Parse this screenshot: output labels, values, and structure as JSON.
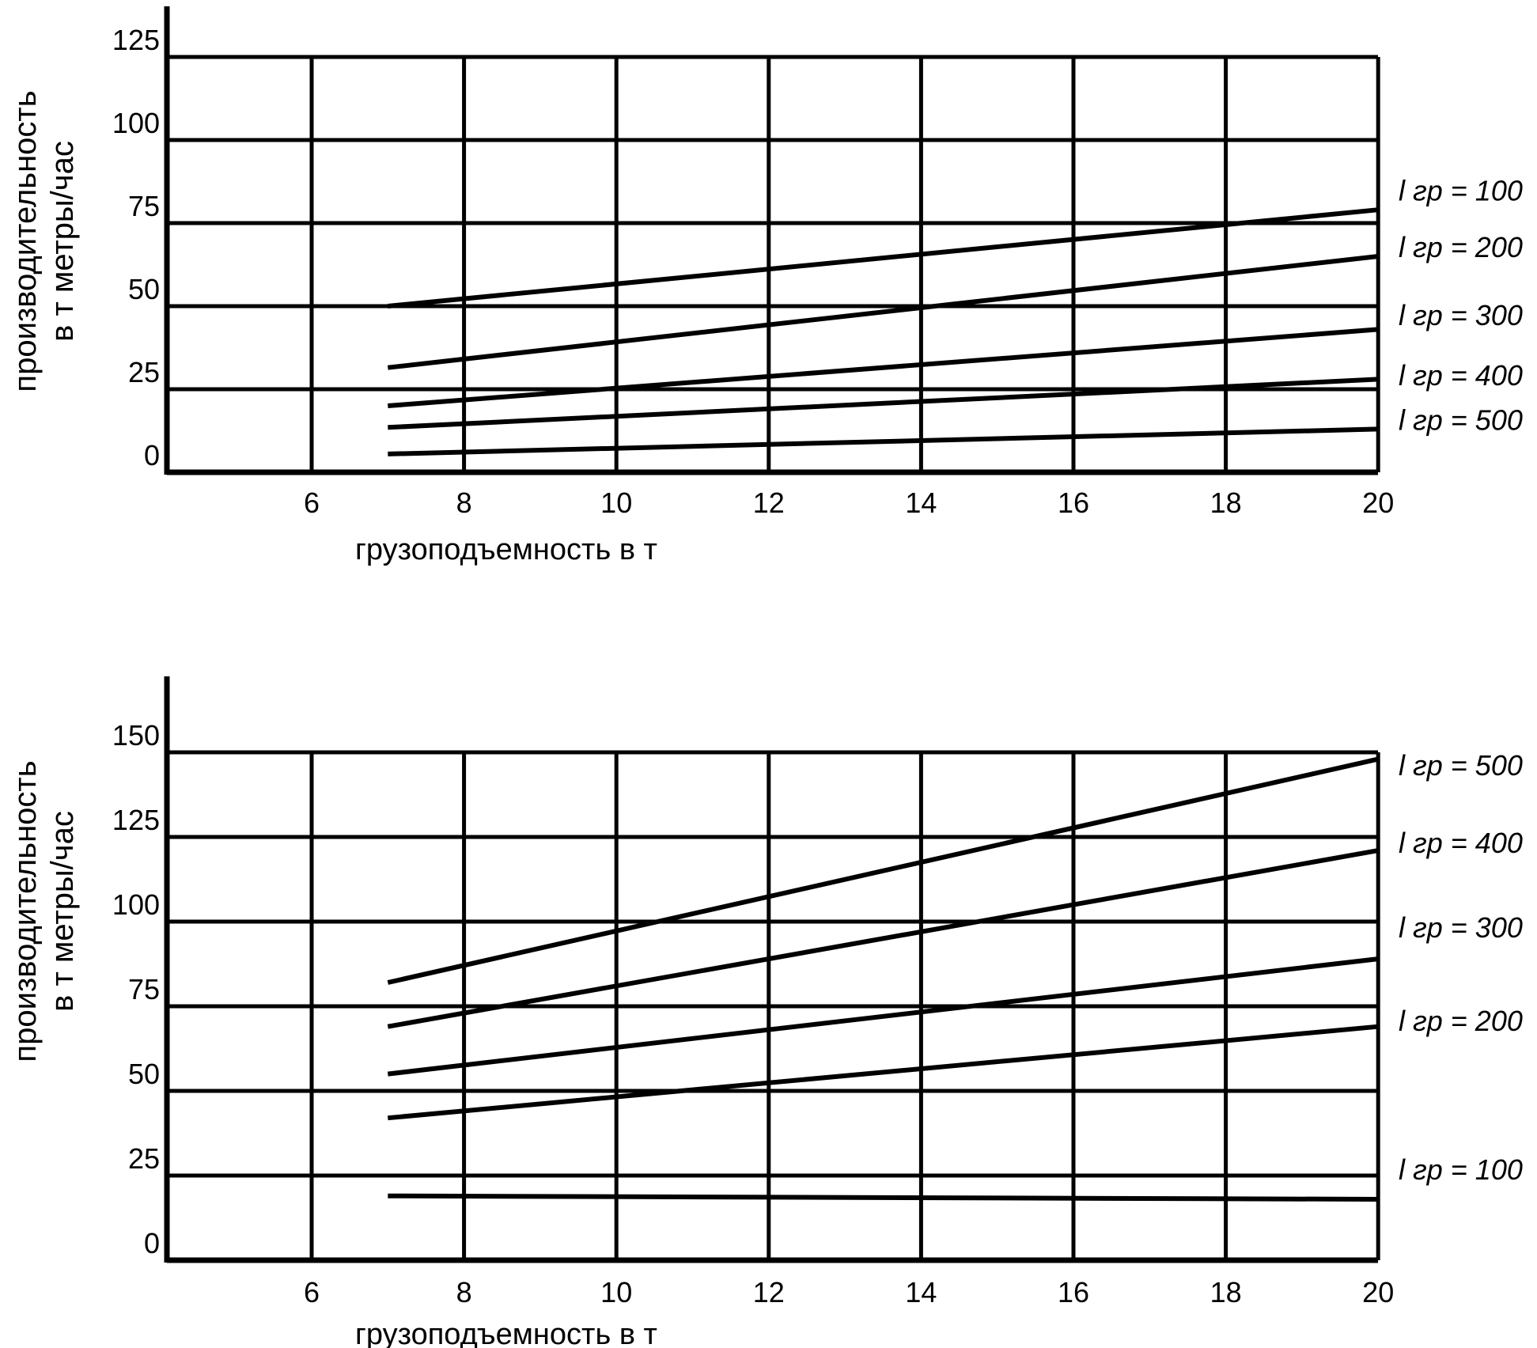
{
  "page": {
    "background_color": "#ffffff",
    "line_color": "#000000",
    "title": ""
  },
  "chart_data": [
    {
      "type": "line",
      "title": "",
      "xlabel": "грузоподъемность в т",
      "ylabel": "производительность в т метры/час",
      "ylabel_lines": [
        "производительность",
        "в т метры/час"
      ],
      "x_ticks": [
        6,
        8,
        10,
        12,
        14,
        16,
        18,
        20
      ],
      "y_ticks": [
        0,
        25,
        50,
        75,
        100,
        125
      ],
      "xlim": [
        4.1,
        20
      ],
      "ylim": [
        0,
        125
      ],
      "grid": true,
      "legend_position": "right-outside",
      "series": [
        {
          "name": "l гр = 100",
          "points": [
            [
              7,
              50
            ],
            [
              20,
              79
            ]
          ],
          "label_v": 84
        },
        {
          "name": "l гр = 200",
          "points": [
            [
              7,
              31.5
            ],
            [
              20,
              65
            ]
          ],
          "label_v": 67
        },
        {
          "name": "l гр = 300",
          "points": [
            [
              7,
              20
            ],
            [
              20,
              43
            ]
          ],
          "label_v": 46.5
        },
        {
          "name": "l гр = 400",
          "points": [
            [
              7,
              13.5
            ],
            [
              20,
              28
            ]
          ],
          "label_v": 28.5
        },
        {
          "name": "l гр = 500",
          "points": [
            [
              7,
              5.5
            ],
            [
              20,
              13
            ]
          ],
          "label_v": 15
        }
      ]
    },
    {
      "type": "line",
      "title": "",
      "xlabel": "грузоподъемность в т",
      "ylabel": "производительность в т метры/час",
      "ylabel_lines": [
        "производительность",
        "в т метры/час"
      ],
      "x_ticks": [
        6,
        8,
        10,
        12,
        14,
        16,
        18,
        20
      ],
      "y_ticks": [
        0,
        25,
        50,
        75,
        100,
        125,
        150
      ],
      "xlim": [
        4.1,
        20
      ],
      "ylim": [
        0,
        150
      ],
      "grid": true,
      "legend_position": "right-outside",
      "series": [
        {
          "name": "l гр = 500",
          "points": [
            [
              7,
              82
            ],
            [
              20,
              148
            ]
          ],
          "label_v": 145.5
        },
        {
          "name": "l гр = 400",
          "points": [
            [
              7,
              69
            ],
            [
              20,
              121
            ]
          ],
          "label_v": 122.5
        },
        {
          "name": "l гр = 300",
          "points": [
            [
              7,
              55
            ],
            [
              20,
              89
            ]
          ],
          "label_v": 97.5
        },
        {
          "name": "l гр = 200",
          "points": [
            [
              7,
              42
            ],
            [
              20,
              69
            ]
          ],
          "label_v": 70
        },
        {
          "name": "l гр = 100",
          "points": [
            [
              7,
              19
            ],
            [
              20,
              18
            ]
          ],
          "label_v": 26
        }
      ]
    }
  ]
}
